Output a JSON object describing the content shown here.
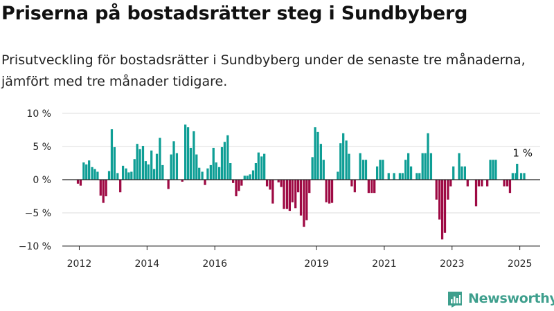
{
  "title": "Priserna på bostadsrätter steg i Sundbyberg",
  "subtitle": "Prisutveckling för bostadsrätter i Sundbyberg under de senaste tre månaderna, jämfört med tre månader tidigare.",
  "brand": {
    "name": "Newsworthy",
    "color": "#3e9f8d"
  },
  "colors": {
    "positive": "#0e9e95",
    "negative": "#9e0a44"
  },
  "chart_data": {
    "type": "bar",
    "x_tick_labels": [
      "2012",
      "2014",
      "2016",
      "2019",
      "2021",
      "2023",
      "2025"
    ],
    "x_tick_positions": [
      2012,
      2014,
      2016,
      2019,
      2021,
      2023,
      2025
    ],
    "y_tick_labels": [
      "−10 %",
      "−5 %",
      "0 %",
      "5 %",
      "10 %"
    ],
    "y_tick_values": [
      -10,
      -5,
      0,
      5,
      10
    ],
    "ylim": [
      -10,
      10
    ],
    "xlim": [
      2011.5,
      2025.6
    ],
    "annotation": {
      "text": "1 %",
      "x": 2024.92,
      "y": 1.0
    },
    "series": [
      {
        "values": [
          [
            2011.96,
            -0.6
          ],
          [
            2012.04,
            -0.9
          ],
          [
            2012.13,
            2.6
          ],
          [
            2012.21,
            2.3
          ],
          [
            2012.29,
            2.9
          ],
          [
            2012.38,
            1.9
          ],
          [
            2012.46,
            1.6
          ],
          [
            2012.54,
            1.2
          ],
          [
            2012.63,
            -2.4
          ],
          [
            2012.71,
            -3.5
          ],
          [
            2012.79,
            -2.5
          ],
          [
            2012.88,
            1.3
          ],
          [
            2012.96,
            7.6
          ],
          [
            2013.04,
            4.9
          ],
          [
            2013.13,
            1.0
          ],
          [
            2013.21,
            -1.9
          ],
          [
            2013.29,
            2.1
          ],
          [
            2013.38,
            1.7
          ],
          [
            2013.46,
            1.1
          ],
          [
            2013.54,
            1.2
          ],
          [
            2013.63,
            3.1
          ],
          [
            2013.71,
            5.4
          ],
          [
            2013.79,
            4.6
          ],
          [
            2013.88,
            5.1
          ],
          [
            2013.96,
            2.8
          ],
          [
            2014.04,
            2.3
          ],
          [
            2014.13,
            4.4
          ],
          [
            2014.21,
            1.6
          ],
          [
            2014.29,
            3.9
          ],
          [
            2014.38,
            6.3
          ],
          [
            2014.46,
            2.2
          ],
          [
            2014.54,
            0.0
          ],
          [
            2014.63,
            -1.4
          ],
          [
            2014.71,
            3.8
          ],
          [
            2014.79,
            5.8
          ],
          [
            2014.88,
            4.0
          ],
          [
            2014.96,
            0.0
          ],
          [
            2015.04,
            -0.3
          ],
          [
            2015.13,
            8.3
          ],
          [
            2015.21,
            7.9
          ],
          [
            2015.29,
            4.8
          ],
          [
            2015.38,
            7.3
          ],
          [
            2015.46,
            3.8
          ],
          [
            2015.54,
            1.8
          ],
          [
            2015.63,
            1.2
          ],
          [
            2015.71,
            -0.8
          ],
          [
            2015.79,
            1.7
          ],
          [
            2015.88,
            2.2
          ],
          [
            2015.96,
            4.8
          ],
          [
            2016.04,
            2.6
          ],
          [
            2016.13,
            1.9
          ],
          [
            2016.21,
            4.9
          ],
          [
            2016.29,
            5.7
          ],
          [
            2016.38,
            6.7
          ],
          [
            2016.46,
            2.5
          ],
          [
            2016.54,
            -0.5
          ],
          [
            2016.63,
            -2.5
          ],
          [
            2016.71,
            -1.7
          ],
          [
            2016.79,
            -0.9
          ],
          [
            2016.88,
            0.6
          ],
          [
            2016.96,
            0.6
          ],
          [
            2017.04,
            0.8
          ],
          [
            2017.13,
            1.4
          ],
          [
            2017.21,
            2.5
          ],
          [
            2017.29,
            4.1
          ],
          [
            2017.38,
            3.5
          ],
          [
            2017.46,
            3.9
          ],
          [
            2017.54,
            -1.0
          ],
          [
            2017.63,
            -1.5
          ],
          [
            2017.71,
            -3.6
          ],
          [
            2017.88,
            -0.4
          ],
          [
            2017.96,
            -1.1
          ],
          [
            2018.04,
            -4.4
          ],
          [
            2018.13,
            -4.4
          ],
          [
            2018.21,
            -4.7
          ],
          [
            2018.29,
            -3.4
          ],
          [
            2018.38,
            -4.3
          ],
          [
            2018.46,
            -1.9
          ],
          [
            2018.54,
            -5.4
          ],
          [
            2018.63,
            -7.1
          ],
          [
            2018.71,
            -6.1
          ],
          [
            2018.79,
            -2.0
          ],
          [
            2018.88,
            3.4
          ],
          [
            2018.96,
            7.9
          ],
          [
            2019.04,
            7.2
          ],
          [
            2019.13,
            5.4
          ],
          [
            2019.21,
            3.0
          ],
          [
            2019.29,
            -3.4
          ],
          [
            2019.38,
            -3.6
          ],
          [
            2019.46,
            -3.5
          ],
          [
            2019.54,
            0.0
          ],
          [
            2019.63,
            1.2
          ],
          [
            2019.71,
            5.5
          ],
          [
            2019.79,
            7.0
          ],
          [
            2019.88,
            5.9
          ],
          [
            2019.96,
            3.9
          ],
          [
            2020.04,
            -1.0
          ],
          [
            2020.13,
            -1.9
          ],
          [
            2020.29,
            4.0
          ],
          [
            2020.38,
            3.0
          ],
          [
            2020.46,
            3.0
          ],
          [
            2020.54,
            -2.0
          ],
          [
            2020.63,
            -2.0
          ],
          [
            2020.71,
            -2.0
          ],
          [
            2020.79,
            2.0
          ],
          [
            2020.88,
            3.0
          ],
          [
            2020.96,
            3.0
          ],
          [
            2021.13,
            1.0
          ],
          [
            2021.29,
            1.0
          ],
          [
            2021.46,
            1.0
          ],
          [
            2021.54,
            1.0
          ],
          [
            2021.63,
            3.0
          ],
          [
            2021.71,
            4.0
          ],
          [
            2021.79,
            2.0
          ],
          [
            2021.96,
            1.0
          ],
          [
            2022.04,
            1.0
          ],
          [
            2022.13,
            4.0
          ],
          [
            2022.21,
            4.0
          ],
          [
            2022.29,
            7.0
          ],
          [
            2022.38,
            4.0
          ],
          [
            2022.54,
            -3.0
          ],
          [
            2022.63,
            -6.0
          ],
          [
            2022.71,
            -9.0
          ],
          [
            2022.79,
            -8.0
          ],
          [
            2022.88,
            -3.0
          ],
          [
            2022.96,
            -1.0
          ],
          [
            2023.04,
            2.0
          ],
          [
            2023.21,
            4.0
          ],
          [
            2023.29,
            2.0
          ],
          [
            2023.38,
            2.0
          ],
          [
            2023.46,
            -1.0
          ],
          [
            2023.71,
            -4.0
          ],
          [
            2023.79,
            -1.0
          ],
          [
            2023.88,
            -1.0
          ],
          [
            2024.04,
            -1.0
          ],
          [
            2024.13,
            3.0
          ],
          [
            2024.21,
            3.0
          ],
          [
            2024.29,
            3.0
          ],
          [
            2024.54,
            -1.0
          ],
          [
            2024.63,
            -1.0
          ],
          [
            2024.71,
            -2.0
          ],
          [
            2024.79,
            1.0
          ],
          [
            2024.88,
            1.0
          ],
          [
            2024.92,
            2.4
          ],
          [
            2025.04,
            1.0
          ],
          [
            2025.13,
            1.0
          ]
        ]
      }
    ]
  }
}
